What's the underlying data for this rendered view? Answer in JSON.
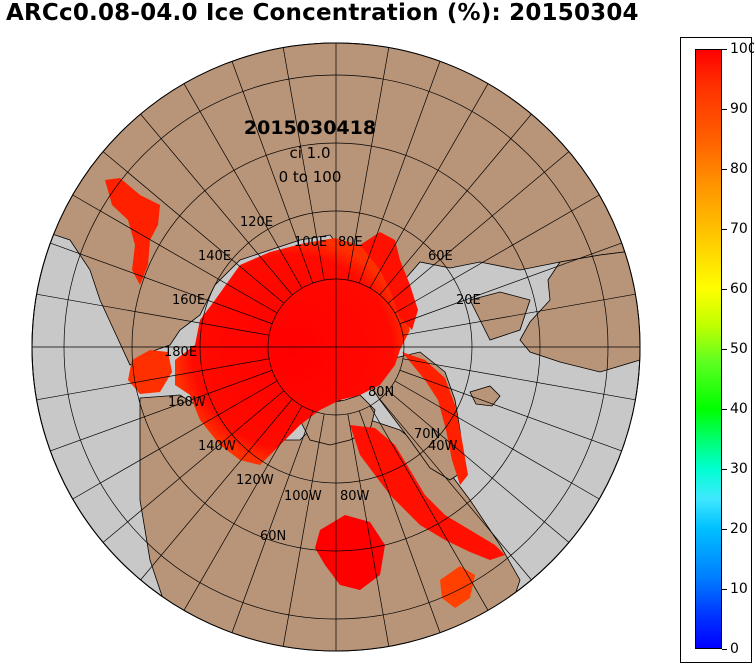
{
  "title": "ARCc0.08-04.0 Ice Concentration (%): 20150304",
  "map": {
    "datetime": "2015030418",
    "contour_interval": "ci 1.0",
    "range": "0 to 100",
    "meridian_labels": [
      "120E",
      "100E",
      "80E",
      "60E",
      "140E",
      "160E",
      "20E",
      "180E",
      "160W",
      "140W",
      "120W",
      "100W",
      "80W",
      "40W"
    ],
    "parallel_labels": [
      "80N",
      "70N",
      "60N"
    ],
    "colors": {
      "ocean": "#c8c8c8",
      "land": "#b89478",
      "ice": "#ff0000",
      "coast": "#000000"
    }
  },
  "colorbar": {
    "min": 0,
    "max": 100,
    "tick_labels": [
      "100",
      "90",
      "80",
      "70",
      "60",
      "50",
      "40",
      "30",
      "20",
      "10",
      "0"
    ]
  }
}
